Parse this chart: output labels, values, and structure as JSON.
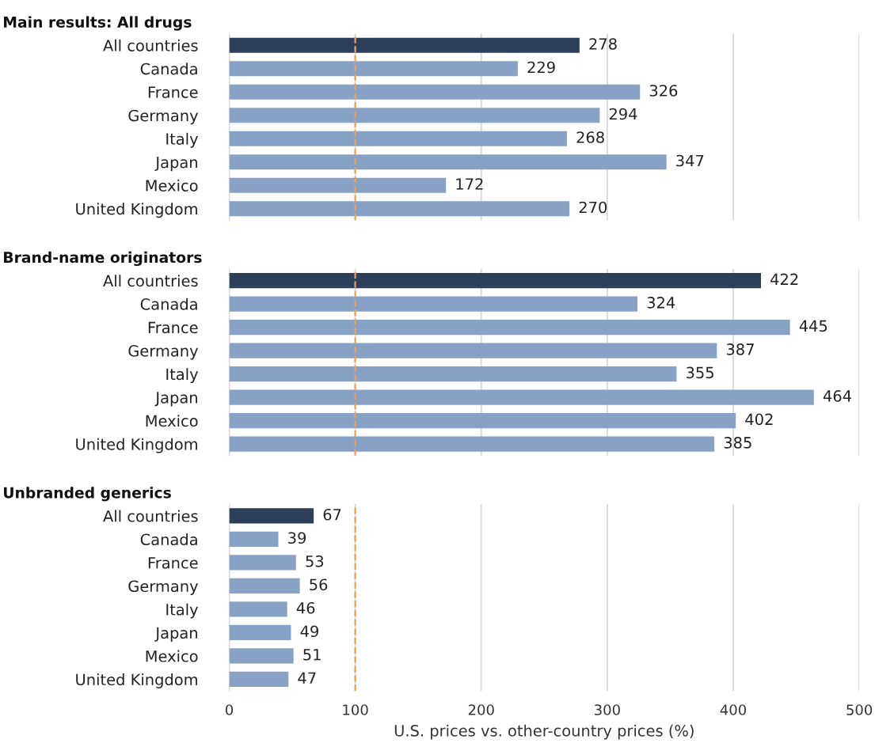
{
  "chart_data": [
    {
      "type": "bar",
      "orientation": "horizontal",
      "title": "Main results: All drugs",
      "categories": [
        "All countries",
        "Canada",
        "France",
        "Germany",
        "Italy",
        "Japan",
        "Mexico",
        "United Kingdom"
      ],
      "values": [
        278,
        229,
        326,
        294,
        268,
        347,
        172,
        270
      ],
      "colors": [
        "#2e3f5c",
        "#87a2c4",
        "#87a2c4",
        "#87a2c4",
        "#87a2c4",
        "#87a2c4",
        "#87a2c4",
        "#87a2c4"
      ],
      "xlim": [
        0,
        500
      ],
      "xticks": [
        0,
        100,
        200,
        300,
        400,
        500
      ],
      "tick_labels": "y",
      "grid": "x",
      "data_labels": true,
      "ref_lines": [
        {
          "axis": "x",
          "value": 100,
          "label": null,
          "color": "#f0a050",
          "line_style": "dashed"
        }
      ]
    },
    {
      "type": "bar",
      "orientation": "horizontal",
      "title": "Brand-name originators",
      "categories": [
        "All countries",
        "Canada",
        "France",
        "Germany",
        "Italy",
        "Japan",
        "Mexico",
        "United Kingdom"
      ],
      "values": [
        422,
        324,
        445,
        387,
        355,
        464,
        402,
        385
      ],
      "colors": [
        "#2e3f5c",
        "#87a2c4",
        "#87a2c4",
        "#87a2c4",
        "#87a2c4",
        "#87a2c4",
        "#87a2c4",
        "#87a2c4"
      ],
      "xlim": [
        0,
        500
      ],
      "xticks": [
        0,
        100,
        200,
        300,
        400,
        500
      ],
      "tick_labels": "y",
      "grid": "x",
      "data_labels": true,
      "ref_lines": [
        {
          "axis": "x",
          "value": 100,
          "label": null,
          "color": "#f0a050",
          "line_style": "dashed"
        }
      ]
    },
    {
      "type": "bar",
      "orientation": "horizontal",
      "title": "Unbranded generics",
      "xlabel": "U.S. prices vs. other-country prices (%)",
      "categories": [
        "All countries",
        "Canada",
        "France",
        "Germany",
        "Italy",
        "Japan",
        "Mexico",
        "United Kingdom"
      ],
      "values": [
        67,
        39,
        53,
        56,
        46,
        49,
        51,
        47
      ],
      "colors": [
        "#2e3f5c",
        "#87a2c4",
        "#87a2c4",
        "#87a2c4",
        "#87a2c4",
        "#87a2c4",
        "#87a2c4",
        "#87a2c4"
      ],
      "xlim": [
        0,
        500
      ],
      "xticks": [
        0,
        100,
        200,
        300,
        400,
        500
      ],
      "grid": "x",
      "data_labels": true,
      "ref_lines": [
        {
          "axis": "x",
          "value": 100,
          "label": null,
          "color": "#f0a050",
          "line_style": "dashed"
        }
      ]
    }
  ]
}
